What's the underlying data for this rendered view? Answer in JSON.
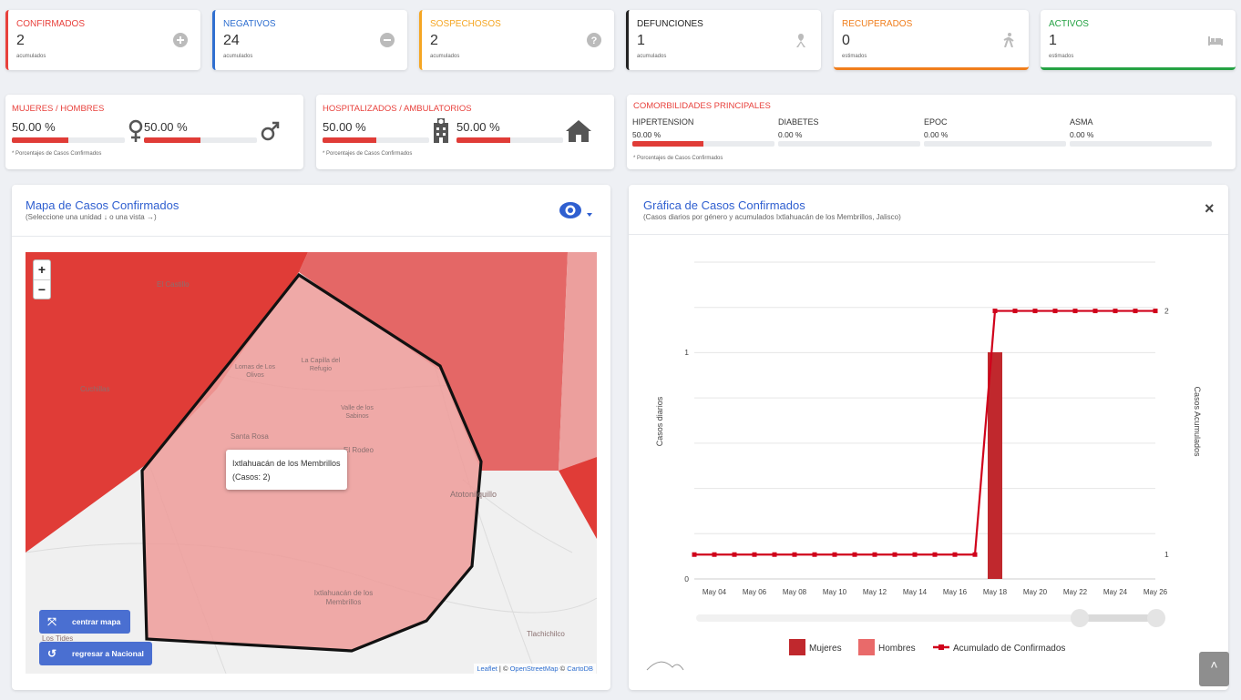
{
  "stats": [
    {
      "label": "CONFIRMADOS",
      "value": "2",
      "sub": "acumulados",
      "color": "#e8413c",
      "icon": "plus-circle-icon"
    },
    {
      "label": "NEGATIVOS",
      "value": "24",
      "sub": "acumulados",
      "color": "#2f6fd0",
      "icon": "minus-circle-icon"
    },
    {
      "label": "SOSPECHOSOS",
      "value": "2",
      "sub": "acumulados",
      "color": "#f5a623",
      "icon": "question-circle-icon"
    },
    {
      "label": "DEFUNCIONES",
      "value": "1",
      "sub": "acumulados",
      "color": "#222222",
      "icon": "ribbon-icon"
    },
    {
      "label": "RECUPERADOS",
      "value": "0",
      "sub": "estimados",
      "color": "#f07e1c",
      "icon": "walking-icon"
    },
    {
      "label": "ACTIVOS",
      "value": "1",
      "sub": "estimados",
      "color": "#25a244",
      "icon": "bed-icon"
    }
  ],
  "genero": {
    "label": "MUJERES / HOMBRES",
    "mujeres": {
      "text": "50.00 %",
      "fraction": 0.5
    },
    "hombres": {
      "text": "50.00 %",
      "fraction": 0.5
    },
    "foot": "* Porcentajes de Casos Confirmados"
  },
  "hospital": {
    "label": "HOSPITALIZADOS / AMBULATORIOS",
    "hospitalizados": {
      "text": "50.00 %",
      "fraction": 0.5
    },
    "ambulatorios": {
      "text": "50.00 %",
      "fraction": 0.5
    },
    "foot": "* Porcentajes de Casos Confirmados"
  },
  "comorbilidades": {
    "label": "COMORBILIDADES PRINCIPALES",
    "items": [
      {
        "name": "HIPERTENSION",
        "text": "50.00 %",
        "fraction": 0.5
      },
      {
        "name": "DIABETES",
        "text": "0.00 %",
        "fraction": 0
      },
      {
        "name": "EPOC",
        "text": "0.00 %",
        "fraction": 0
      },
      {
        "name": "ASMA",
        "text": "0.00 %",
        "fraction": 0
      }
    ],
    "foot": "* Porcentajes de Casos Confirmados"
  },
  "map": {
    "title": "Mapa de Casos Confirmados",
    "subtitle": "(Seleccione una unidad ↓ o una vista →)",
    "zoom_in": "+",
    "zoom_out": "−",
    "tooltip_name": "Ixtlahuacán de los Membrillos",
    "tooltip_cases": "(Casos: 2)",
    "place_labels": [
      "El Castillo",
      "Lomas de Los Olivos",
      "La Capilla del Refugio",
      "Valle de los Sabinos",
      "Cuchillas",
      "Santa Rosa",
      "El Rodeo",
      "Atotonilquillo",
      "Ixtlahuacán de los Membrillos",
      "Tlachichilco",
      "Los Tides"
    ],
    "btn_center": "centrar mapa",
    "btn_national": "regresar a Nacional",
    "attribution": {
      "leaflet": "Leaflet",
      "sep1": " | © ",
      "osm": "OpenStreetMap",
      "sep2": " © ",
      "carto": "CartoDB"
    }
  },
  "chart_panel": {
    "title": "Gráfica de Casos Confirmados",
    "subtitle": "(Casos diarios por género y acumulados Ixtlahuacán de los Membrillos, Jalisco)",
    "close": "×",
    "scroll_top": "˄"
  },
  "chart_data": {
    "type": "bar",
    "categories": [
      "May 03",
      "May 04",
      "May 05",
      "May 06",
      "May 07",
      "May 08",
      "May 09",
      "May 10",
      "May 11",
      "May 12",
      "May 13",
      "May 14",
      "May 15",
      "May 16",
      "May 17",
      "May 18",
      "May 19",
      "May 20",
      "May 21",
      "May 22",
      "May 23",
      "May 24",
      "May 25",
      "May 26"
    ],
    "tick_labels": [
      "May 04",
      "May 06",
      "May 08",
      "May 10",
      "May 12",
      "May 14",
      "May 16",
      "May 18",
      "May 20",
      "May 22",
      "May 24",
      "May 26"
    ],
    "series": [
      {
        "name": "Mujeres",
        "type": "bar",
        "color": "#c0282d",
        "values": [
          0,
          0,
          0,
          0,
          0,
          0,
          0,
          0,
          0,
          0,
          0,
          0,
          0,
          0,
          0,
          1,
          0,
          0,
          0,
          0,
          0,
          0,
          0,
          0
        ]
      },
      {
        "name": "Hombres",
        "type": "bar",
        "color": "#e96a6a",
        "values": [
          0,
          0,
          0,
          0,
          0,
          0,
          0,
          0,
          0,
          0,
          0,
          0,
          0,
          0,
          0,
          0,
          0,
          0,
          0,
          0,
          0,
          0,
          0,
          0
        ]
      },
      {
        "name": "Acumulado de Confirmados",
        "type": "line",
        "color": "#d0021b",
        "axis": "right",
        "values": [
          1,
          1,
          1,
          1,
          1,
          1,
          1,
          1,
          1,
          1,
          1,
          1,
          1,
          1,
          1,
          2,
          2,
          2,
          2,
          2,
          2,
          2,
          2,
          2
        ]
      }
    ],
    "ylabel": "Casos diarios",
    "y2label": "Casos Acumulados",
    "ylim": [
      0,
      1
    ],
    "y2lim": [
      0.9,
      2.2
    ],
    "yticks": [
      "0",
      "1"
    ],
    "y2ticks": [
      "1",
      "2"
    ],
    "legend": "bottom"
  }
}
